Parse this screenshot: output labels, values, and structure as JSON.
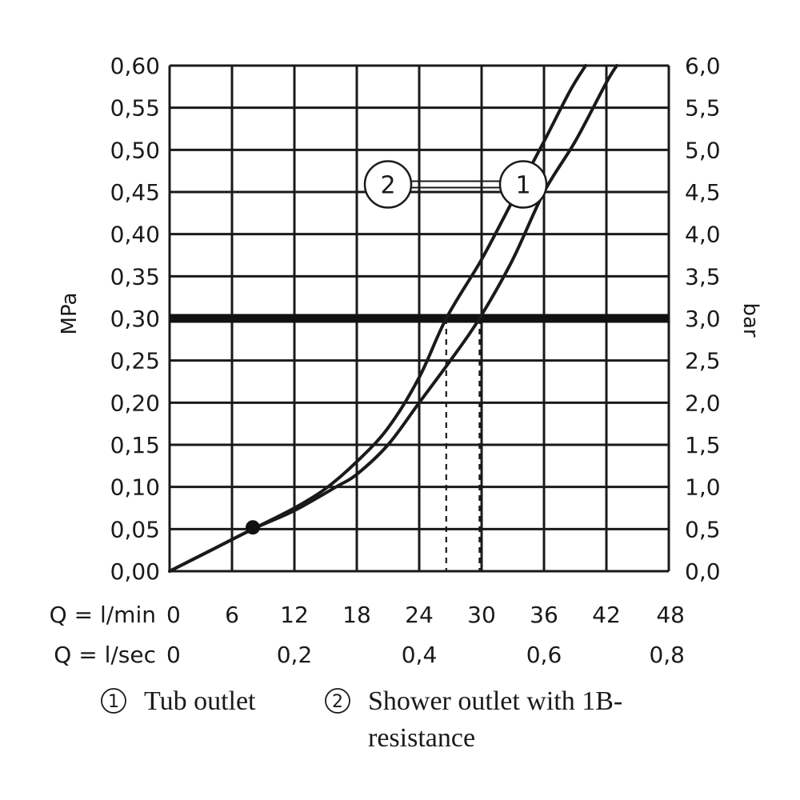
{
  "chart_data": {
    "type": "line",
    "xlabel_rows": [
      {
        "label": "Q = l/min",
        "ticks": [
          {
            "x": 0,
            "text": "0"
          },
          {
            "x": 6,
            "text": "6"
          },
          {
            "x": 12,
            "text": "12"
          },
          {
            "x": 18,
            "text": "18"
          },
          {
            "x": 24,
            "text": "24"
          },
          {
            "x": 30,
            "text": "30"
          },
          {
            "x": 36,
            "text": "36"
          },
          {
            "x": 42,
            "text": "42"
          },
          {
            "x": 48,
            "text": "48"
          }
        ]
      },
      {
        "label": "Q = l/sec",
        "ticks": [
          {
            "x": 0,
            "text": "0"
          },
          {
            "x": 12,
            "text": "0,2"
          },
          {
            "x": 24,
            "text": "0,4"
          },
          {
            "x": 36,
            "text": "0,6"
          },
          {
            "x": 48,
            "text": "0,8"
          }
        ]
      }
    ],
    "ylabel_left": "MPa",
    "ylabel_right": "bar",
    "xlim": [
      0,
      48
    ],
    "ylim": [
      0,
      0.6
    ],
    "grid": true,
    "left_ticks": [
      {
        "y": 0.0,
        "text": "0,00"
      },
      {
        "y": 0.05,
        "text": "0,05"
      },
      {
        "y": 0.1,
        "text": "0,10"
      },
      {
        "y": 0.15,
        "text": "0,15"
      },
      {
        "y": 0.2,
        "text": "0,20"
      },
      {
        "y": 0.25,
        "text": "0,25"
      },
      {
        "y": 0.3,
        "text": "0,30"
      },
      {
        "y": 0.35,
        "text": "0,35"
      },
      {
        "y": 0.4,
        "text": "0,40"
      },
      {
        "y": 0.45,
        "text": "0,45"
      },
      {
        "y": 0.5,
        "text": "0,50"
      },
      {
        "y": 0.55,
        "text": "0,55"
      },
      {
        "y": 0.6,
        "text": "0,60"
      }
    ],
    "right_ticks": [
      {
        "y": 0.0,
        "text": "0,0"
      },
      {
        "y": 0.05,
        "text": "0,5"
      },
      {
        "y": 0.1,
        "text": "1,0"
      },
      {
        "y": 0.15,
        "text": "1,5"
      },
      {
        "y": 0.2,
        "text": "2,0"
      },
      {
        "y": 0.25,
        "text": "2,5"
      },
      {
        "y": 0.3,
        "text": "3,0"
      },
      {
        "y": 0.35,
        "text": "3,5"
      },
      {
        "y": 0.4,
        "text": "4,0"
      },
      {
        "y": 0.45,
        "text": "4,5"
      },
      {
        "y": 0.5,
        "text": "5,0"
      },
      {
        "y": 0.55,
        "text": "5,5"
      },
      {
        "y": 0.6,
        "text": "6,0"
      }
    ],
    "reference_line": {
      "y": 0.3
    },
    "marker_point": {
      "x": 8,
      "y": 0.052
    },
    "dashed_drops": [
      {
        "series": "2",
        "x": 26.6,
        "y": 0.3
      },
      {
        "series": "1",
        "x": 29.8,
        "y": 0.3
      }
    ],
    "series": [
      {
        "id": "2",
        "points": [
          [
            0,
            0
          ],
          [
            4,
            0.025
          ],
          [
            8,
            0.05
          ],
          [
            12,
            0.075
          ],
          [
            15,
            0.098
          ],
          [
            18,
            0.13
          ],
          [
            21,
            0.17
          ],
          [
            24,
            0.23
          ],
          [
            26.6,
            0.3
          ],
          [
            30,
            0.37
          ],
          [
            33,
            0.44
          ],
          [
            36,
            0.51
          ],
          [
            38.5,
            0.57
          ],
          [
            40,
            0.6
          ]
        ]
      },
      {
        "id": "1",
        "points": [
          [
            0,
            0
          ],
          [
            4,
            0.025
          ],
          [
            8,
            0.05
          ],
          [
            12,
            0.072
          ],
          [
            16,
            0.1
          ],
          [
            18,
            0.115
          ],
          [
            21,
            0.15
          ],
          [
            24,
            0.2
          ],
          [
            27,
            0.25
          ],
          [
            29.8,
            0.3
          ],
          [
            33,
            0.37
          ],
          [
            36,
            0.45
          ],
          [
            39,
            0.51
          ],
          [
            42,
            0.58
          ],
          [
            43,
            0.6
          ]
        ]
      }
    ],
    "callouts": [
      {
        "text": "2",
        "x": 21,
        "y": 0.459
      },
      {
        "text": "1",
        "x": 34,
        "y": 0.459
      }
    ]
  },
  "legend": [
    {
      "num": "1",
      "text": "Tub outlet"
    },
    {
      "num": "2",
      "text": "Shower outlet with 1B-",
      "text2": "resistance"
    }
  ]
}
